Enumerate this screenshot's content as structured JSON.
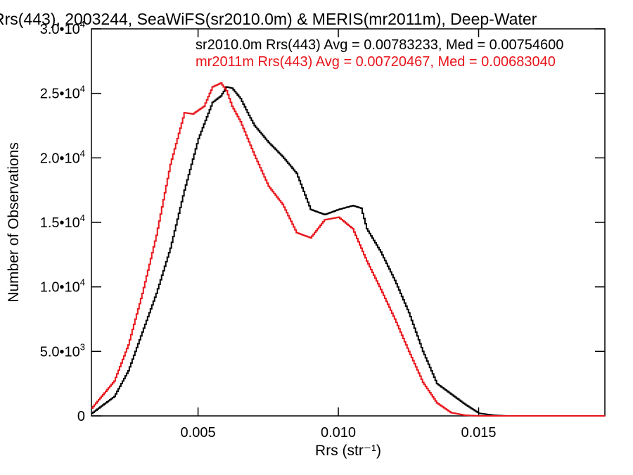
{
  "chart_data": {
    "type": "line",
    "title": "Rrs(443), 2003244, SeaWiFS(sr2010.0m) & MERIS(mr2011m), Deep-Water",
    "xlabel": "Rrs (str⁻¹)",
    "ylabel": "Number of Observations",
    "xlim": [
      0.0012,
      0.0195
    ],
    "ylim": [
      0,
      30000
    ],
    "x_ticks": [
      {
        "value": 0.005,
        "label": "0.005"
      },
      {
        "value": 0.01,
        "label": "0.010"
      },
      {
        "value": 0.015,
        "label": "0.015"
      }
    ],
    "y_ticks": [
      {
        "value": 0,
        "mantissa": "0",
        "exp": ""
      },
      {
        "value": 5000,
        "mantissa": "5.0•10",
        "exp": "3"
      },
      {
        "value": 10000,
        "mantissa": "1.0•10",
        "exp": "4"
      },
      {
        "value": 15000,
        "mantissa": "1.5•10",
        "exp": "4"
      },
      {
        "value": 20000,
        "mantissa": "2.0•10",
        "exp": "4"
      },
      {
        "value": 25000,
        "mantissa": "2.5•10",
        "exp": "4"
      },
      {
        "value": 30000,
        "mantissa": "3.0•10",
        "exp": "4"
      }
    ],
    "legend_placement": "top-right",
    "series": [
      {
        "name": "sr2010.0m Rrs(443) Avg = 0.00783233, Med = 0.00754600",
        "color": "#000000",
        "x": [
          0.0012,
          0.002,
          0.0025,
          0.003,
          0.0035,
          0.004,
          0.0045,
          0.005,
          0.0055,
          0.0058,
          0.006,
          0.0062,
          0.0065,
          0.0068,
          0.007,
          0.0075,
          0.008,
          0.0085,
          0.009,
          0.0095,
          0.01,
          0.0105,
          0.0108,
          0.011,
          0.0115,
          0.012,
          0.0125,
          0.013,
          0.0135,
          0.014,
          0.0145,
          0.015,
          0.0155,
          0.016,
          0.017,
          0.0195
        ],
        "y": [
          200,
          1500,
          3500,
          6500,
          9500,
          13000,
          17500,
          21500,
          24300,
          24800,
          25500,
          25400,
          24600,
          23300,
          22500,
          21200,
          20100,
          18800,
          16000,
          15600,
          16000,
          16300,
          16100,
          14500,
          12700,
          10500,
          8000,
          5000,
          2500,
          1700,
          900,
          200,
          50,
          0,
          0,
          0
        ]
      },
      {
        "name": "mr2011m Rrs(443) Avg = 0.00720467, Med = 0.00683040",
        "color": "#e8141a",
        "x": [
          0.0012,
          0.002,
          0.0025,
          0.003,
          0.0035,
          0.004,
          0.0045,
          0.0048,
          0.0052,
          0.0055,
          0.0058,
          0.006,
          0.0062,
          0.0065,
          0.007,
          0.0075,
          0.008,
          0.0085,
          0.009,
          0.0095,
          0.01,
          0.0105,
          0.011,
          0.0115,
          0.012,
          0.0125,
          0.013,
          0.0135,
          0.014,
          0.0145,
          0.015,
          0.0155,
          0.016,
          0.0195
        ],
        "y": [
          600,
          2700,
          5500,
          9500,
          14000,
          19500,
          23500,
          23400,
          24000,
          25500,
          25800,
          25200,
          24000,
          22800,
          20200,
          17800,
          16400,
          14200,
          13800,
          15200,
          15400,
          14500,
          12000,
          9800,
          7500,
          5000,
          2600,
          1000,
          250,
          50,
          0,
          0,
          0,
          0
        ]
      }
    ]
  }
}
